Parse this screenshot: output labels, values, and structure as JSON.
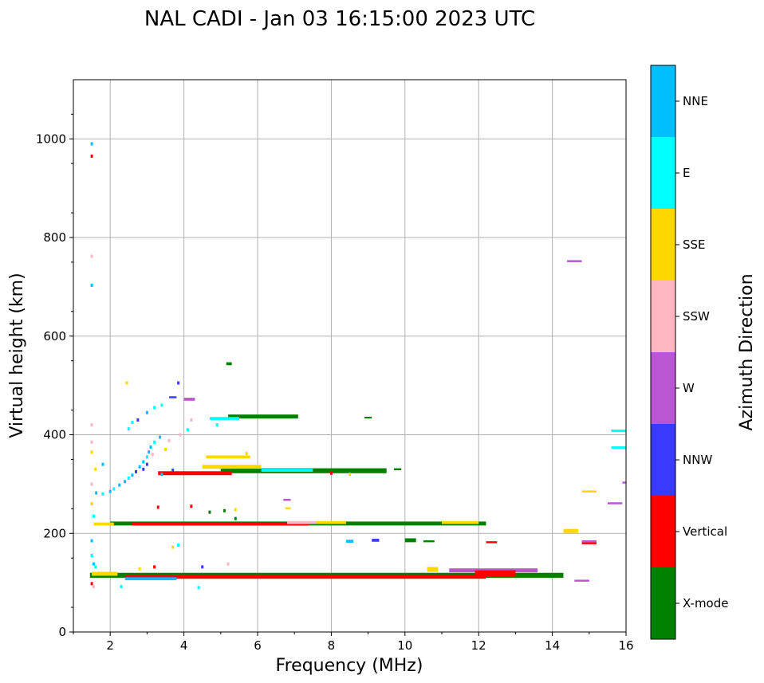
{
  "chart_data": {
    "type": "scatter",
    "title": "NAL CADI - Jan 03 16:15:00 2023 UTC",
    "xlabel": "Frequency (MHz)",
    "ylabel": "Virtual height (km)",
    "xlim": [
      1,
      16
    ],
    "ylim": [
      0,
      1120
    ],
    "xticks": [
      2,
      4,
      6,
      8,
      10,
      12,
      14,
      16
    ],
    "yticks": [
      0,
      200,
      400,
      600,
      800,
      1000
    ],
    "grid": true,
    "colorbar": {
      "label": "Azimuth Direction",
      "categories": [
        {
          "name": "NNE",
          "color": "#00bfff"
        },
        {
          "name": "E",
          "color": "#00ffff"
        },
        {
          "name": "SSE",
          "color": "#ffd700"
        },
        {
          "name": "SSW",
          "color": "#ffb6c1"
        },
        {
          "name": "W",
          "color": "#ba55d3"
        },
        {
          "name": "NNW",
          "color": "#3a3aff"
        },
        {
          "name": "Vertical",
          "color": "#ff0000"
        },
        {
          "name": "X-mode",
          "color": "#008000"
        }
      ]
    },
    "segments": [
      {
        "x0": 1.45,
        "x1": 14.3,
        "y": 115,
        "h": 10,
        "dir": "X-mode"
      },
      {
        "x0": 2.4,
        "x1": 12.2,
        "y": 112,
        "h": 8,
        "dir": "Vertical"
      },
      {
        "x0": 11.2,
        "x1": 13.6,
        "y": 125,
        "h": 8,
        "dir": "W"
      },
      {
        "x0": 11.9,
        "x1": 13.0,
        "y": 119,
        "h": 12,
        "dir": "Vertical"
      },
      {
        "x0": 10.6,
        "x1": 10.9,
        "y": 127,
        "h": 10,
        "dir": "SSE"
      },
      {
        "x0": 1.5,
        "x1": 2.2,
        "y": 118,
        "h": 8,
        "dir": "SSE"
      },
      {
        "x0": 2.4,
        "x1": 3.8,
        "y": 108,
        "h": 6,
        "dir": "NNE"
      },
      {
        "x0": 14.6,
        "x1": 15.0,
        "y": 104,
        "h": 4,
        "dir": "W"
      },
      {
        "x0": 2.0,
        "x1": 12.2,
        "y": 220,
        "h": 8,
        "dir": "X-mode"
      },
      {
        "x0": 2.6,
        "x1": 7.4,
        "y": 219,
        "h": 6,
        "dir": "Vertical"
      },
      {
        "x0": 1.55,
        "x1": 2.1,
        "y": 219,
        "h": 6,
        "dir": "SSE"
      },
      {
        "x0": 6.8,
        "x1": 7.6,
        "y": 222,
        "h": 6,
        "dir": "SSW"
      },
      {
        "x0": 11.0,
        "x1": 12.0,
        "y": 222,
        "h": 6,
        "dir": "SSE"
      },
      {
        "x0": 7.6,
        "x1": 8.4,
        "y": 222,
        "h": 6,
        "dir": "SSE"
      },
      {
        "x0": 14.3,
        "x1": 14.7,
        "y": 205,
        "h": 8,
        "dir": "SSE"
      },
      {
        "x0": 14.8,
        "x1": 15.2,
        "y": 184,
        "h": 4,
        "dir": "W"
      },
      {
        "x0": 14.8,
        "x1": 15.2,
        "y": 180,
        "h": 4,
        "dir": "Vertical"
      },
      {
        "x0": 8.4,
        "x1": 8.6,
        "y": 184,
        "h": 6,
        "dir": "NNE"
      },
      {
        "x0": 9.1,
        "x1": 9.3,
        "y": 186,
        "h": 6,
        "dir": "NNW"
      },
      {
        "x0": 10.0,
        "x1": 10.3,
        "y": 186,
        "h": 8,
        "dir": "X-mode"
      },
      {
        "x0": 10.5,
        "x1": 10.8,
        "y": 184,
        "h": 4,
        "dir": "X-mode"
      },
      {
        "x0": 12.2,
        "x1": 12.5,
        "y": 182,
        "h": 4,
        "dir": "Vertical"
      },
      {
        "x0": 5.0,
        "x1": 9.5,
        "y": 327,
        "h": 10,
        "dir": "X-mode"
      },
      {
        "x0": 3.3,
        "x1": 5.3,
        "y": 322,
        "h": 8,
        "dir": "Vertical"
      },
      {
        "x0": 4.5,
        "x1": 6.1,
        "y": 335,
        "h": 8,
        "dir": "SSE"
      },
      {
        "x0": 6.1,
        "x1": 7.5,
        "y": 328,
        "h": 6,
        "dir": "E"
      },
      {
        "x0": 9.7,
        "x1": 9.9,
        "y": 330,
        "h": 4,
        "dir": "X-mode"
      },
      {
        "x0": 4.6,
        "x1": 5.8,
        "y": 355,
        "h": 6,
        "dir": "SSE"
      },
      {
        "x0": 5.2,
        "x1": 7.1,
        "y": 437,
        "h": 8,
        "dir": "X-mode"
      },
      {
        "x0": 4.7,
        "x1": 5.5,
        "y": 433,
        "h": 6,
        "dir": "E"
      },
      {
        "x0": 8.9,
        "x1": 9.1,
        "y": 435,
        "h": 3,
        "dir": "X-mode"
      },
      {
        "x0": 15.6,
        "x1": 16.0,
        "y": 408,
        "h": 5,
        "dir": "E"
      },
      {
        "x0": 15.6,
        "x1": 16.0,
        "y": 374,
        "h": 5,
        "dir": "E"
      },
      {
        "x0": 14.8,
        "x1": 15.2,
        "y": 285,
        "h": 4,
        "dir": "SSE"
      },
      {
        "x0": 15.5,
        "x1": 15.9,
        "y": 261,
        "h": 4,
        "dir": "W"
      },
      {
        "x0": 15.9,
        "x1": 16.0,
        "y": 303,
        "h": 4,
        "dir": "W"
      },
      {
        "x0": 14.4,
        "x1": 14.8,
        "y": 752,
        "h": 4,
        "dir": "W"
      },
      {
        "x0": 4.0,
        "x1": 4.3,
        "y": 472,
        "h": 6,
        "dir": "W"
      },
      {
        "x0": 3.6,
        "x1": 3.8,
        "y": 476,
        "h": 4,
        "dir": "NNW"
      },
      {
        "x0": 5.15,
        "x1": 5.3,
        "y": 544,
        "h": 6,
        "dir": "X-mode"
      },
      {
        "x0": 6.7,
        "x1": 6.9,
        "y": 268,
        "h": 4,
        "dir": "W"
      },
      {
        "x0": 6.75,
        "x1": 6.9,
        "y": 251,
        "h": 4,
        "dir": "SSE"
      }
    ],
    "points": [
      {
        "x": 1.62,
        "y": 282,
        "dir": "NNE"
      },
      {
        "x": 1.8,
        "y": 280,
        "dir": "E"
      },
      {
        "x": 2.0,
        "y": 285,
        "dir": "NNE"
      },
      {
        "x": 2.1,
        "y": 290,
        "dir": "E"
      },
      {
        "x": 2.25,
        "y": 298,
        "dir": "NNE"
      },
      {
        "x": 2.4,
        "y": 305,
        "dir": "NNE"
      },
      {
        "x": 2.5,
        "y": 312,
        "dir": "E"
      },
      {
        "x": 2.6,
        "y": 318,
        "dir": "NNE"
      },
      {
        "x": 2.7,
        "y": 325,
        "dir": "NNW"
      },
      {
        "x": 2.8,
        "y": 335,
        "dir": "NNE"
      },
      {
        "x": 2.9,
        "y": 345,
        "dir": "NNE"
      },
      {
        "x": 3.0,
        "y": 355,
        "dir": "E"
      },
      {
        "x": 3.05,
        "y": 365,
        "dir": "NNE"
      },
      {
        "x": 3.1,
        "y": 375,
        "dir": "NNE"
      },
      {
        "x": 3.2,
        "y": 385,
        "dir": "E"
      },
      {
        "x": 3.35,
        "y": 395,
        "dir": "NNE"
      },
      {
        "x": 2.9,
        "y": 330,
        "dir": "NNW"
      },
      {
        "x": 3.0,
        "y": 340,
        "dir": "NNW"
      },
      {
        "x": 3.15,
        "y": 360,
        "dir": "SSW"
      },
      {
        "x": 3.5,
        "y": 370,
        "dir": "SSE"
      },
      {
        "x": 3.4,
        "y": 320,
        "dir": "NNE"
      },
      {
        "x": 3.7,
        "y": 328,
        "dir": "NNW"
      },
      {
        "x": 3.9,
        "y": 400,
        "dir": "SSW"
      },
      {
        "x": 4.1,
        "y": 410,
        "dir": "E"
      },
      {
        "x": 3.6,
        "y": 388,
        "dir": "SSW"
      },
      {
        "x": 2.5,
        "y": 412,
        "dir": "E"
      },
      {
        "x": 2.6,
        "y": 425,
        "dir": "E"
      },
      {
        "x": 2.75,
        "y": 430,
        "dir": "NNW"
      },
      {
        "x": 3.0,
        "y": 445,
        "dir": "NNE"
      },
      {
        "x": 3.2,
        "y": 455,
        "dir": "E"
      },
      {
        "x": 3.4,
        "y": 460,
        "dir": "E"
      },
      {
        "x": 3.85,
        "y": 505,
        "dir": "NNW"
      },
      {
        "x": 2.45,
        "y": 505,
        "dir": "SSE"
      },
      {
        "x": 1.8,
        "y": 340,
        "dir": "NNE"
      },
      {
        "x": 1.6,
        "y": 330,
        "dir": "SSE"
      },
      {
        "x": 1.5,
        "y": 420,
        "dir": "SSW"
      },
      {
        "x": 1.5,
        "y": 990,
        "dir": "NNE"
      },
      {
        "x": 1.5,
        "y": 965,
        "dir": "Vertical"
      },
      {
        "x": 1.5,
        "y": 762,
        "dir": "SSW"
      },
      {
        "x": 1.5,
        "y": 703,
        "dir": "NNE"
      },
      {
        "x": 1.5,
        "y": 385,
        "dir": "SSW"
      },
      {
        "x": 1.5,
        "y": 365,
        "dir": "SSE"
      },
      {
        "x": 1.5,
        "y": 300,
        "dir": "SSW"
      },
      {
        "x": 1.5,
        "y": 260,
        "dir": "SSE"
      },
      {
        "x": 1.55,
        "y": 235,
        "dir": "E"
      },
      {
        "x": 1.5,
        "y": 185,
        "dir": "NNE"
      },
      {
        "x": 1.5,
        "y": 155,
        "dir": "E"
      },
      {
        "x": 1.55,
        "y": 138,
        "dir": "NNE"
      },
      {
        "x": 1.6,
        "y": 132,
        "dir": "E"
      },
      {
        "x": 1.5,
        "y": 98,
        "dir": "Vertical"
      },
      {
        "x": 1.55,
        "y": 92,
        "dir": "SSW"
      },
      {
        "x": 2.3,
        "y": 92,
        "dir": "E"
      },
      {
        "x": 4.4,
        "y": 90,
        "dir": "E"
      },
      {
        "x": 3.7,
        "y": 172,
        "dir": "SSE"
      },
      {
        "x": 3.85,
        "y": 176,
        "dir": "E"
      },
      {
        "x": 3.3,
        "y": 253,
        "dir": "Vertical"
      },
      {
        "x": 4.2,
        "y": 255,
        "dir": "Vertical"
      },
      {
        "x": 4.7,
        "y": 243,
        "dir": "X-mode"
      },
      {
        "x": 5.1,
        "y": 246,
        "dir": "X-mode"
      },
      {
        "x": 5.4,
        "y": 248,
        "dir": "SSE"
      },
      {
        "x": 5.4,
        "y": 230,
        "dir": "X-mode"
      },
      {
        "x": 4.5,
        "y": 132,
        "dir": "NNW"
      },
      {
        "x": 5.2,
        "y": 138,
        "dir": "SSW"
      },
      {
        "x": 3.2,
        "y": 132,
        "dir": "Vertical"
      },
      {
        "x": 2.8,
        "y": 128,
        "dir": "SSE"
      },
      {
        "x": 4.9,
        "y": 420,
        "dir": "E"
      },
      {
        "x": 4.2,
        "y": 430,
        "dir": "SSW"
      },
      {
        "x": 5.7,
        "y": 362,
        "dir": "SSE"
      },
      {
        "x": 8.0,
        "y": 322,
        "dir": "Vertical"
      },
      {
        "x": 8.5,
        "y": 320,
        "dir": "SSE"
      }
    ]
  }
}
